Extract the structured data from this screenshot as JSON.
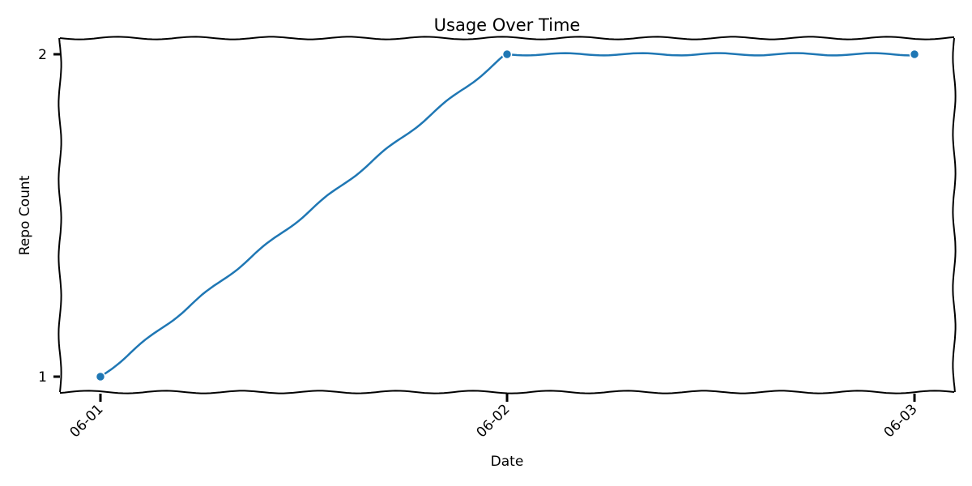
{
  "chart_data": {
    "type": "line",
    "title": "Usage Over Time",
    "xlabel": "Date",
    "ylabel": "Repo Count",
    "x": [
      "06-01",
      "06-02",
      "06-03"
    ],
    "series": [
      {
        "values": [
          1,
          2,
          2
        ]
      }
    ],
    "yticks": [
      1,
      2
    ],
    "ylim": [
      1,
      2
    ],
    "grid": false,
    "legend": "none",
    "line_color": "#1f77b4",
    "style": "hand-drawn"
  }
}
